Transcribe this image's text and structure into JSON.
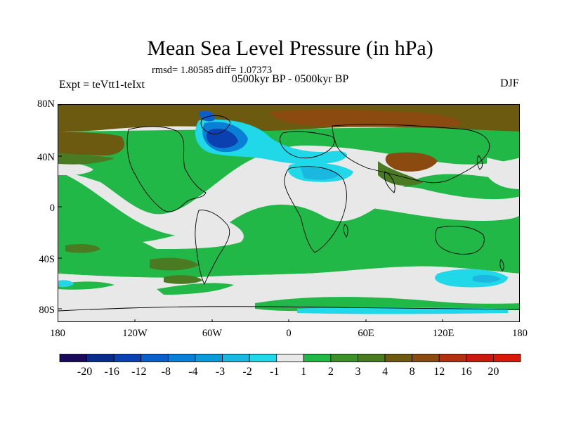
{
  "title": "Mean Sea Level Pressure (in hPa)",
  "stats": "rmsd= 1.80585 diff= 1.07373",
  "experiment": "Expt = teVtt1-teIxt",
  "period": "0500kyr BP - 0500kyr BP",
  "season": "DJF",
  "lat_ticks": [
    "80N",
    "40N",
    "0",
    "40S",
    "80S"
  ],
  "lon_ticks": [
    "180",
    "120W",
    "60W",
    "0",
    "60E",
    "120E",
    "180"
  ],
  "colorbar": {
    "colors": [
      "#1a0a5a",
      "#0a2a8c",
      "#0a40b0",
      "#0a5fc8",
      "#0a7fd6",
      "#0a9bd8",
      "#1ab8e0",
      "#20d8e8",
      "#e8e8e8",
      "#22b848",
      "#3d8f2a",
      "#4a7a22",
      "#6b5a10",
      "#8b4a10",
      "#b03010",
      "#c81810",
      "#d81808"
    ],
    "labels": [
      "-20",
      "-16",
      "-12",
      "-8",
      "-4",
      "-3",
      "-2",
      "-1",
      "1",
      "2",
      "3",
      "4",
      "8",
      "12",
      "16",
      "20"
    ]
  }
}
